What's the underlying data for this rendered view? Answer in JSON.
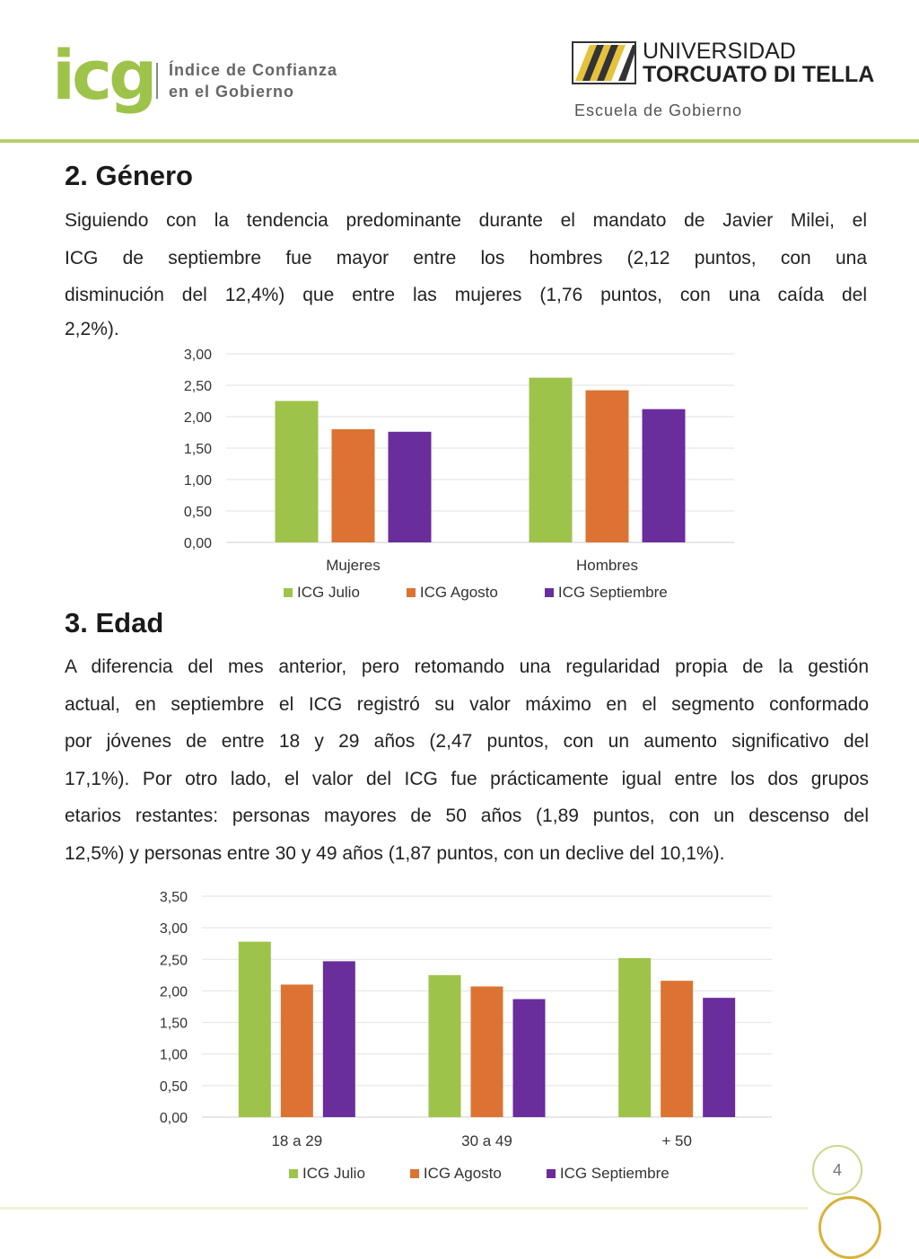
{
  "header": {
    "logo": "icg",
    "subtitle_line1": "Índice de Confianza",
    "subtitle_line2": "en el Gobierno",
    "university_line1": "UNIVERSIDAD",
    "university_line2": "TORCUATO DI TELLA",
    "school": "Escuela de Gobierno"
  },
  "colors": {
    "julio": "#9ec34a",
    "agosto": "#dd7332",
    "septiembre": "#6a2d9c",
    "accent": "#b7cf6a"
  },
  "section_genero": {
    "title": "2. Género",
    "lines": [
      "Siguiendo con la tendencia predominante durante el mandato de Javier Milei, el",
      "ICG de septiembre fue mayor entre los hombres (2,12 puntos, con una",
      "disminución del 12,4%) que entre las mujeres (1,76 puntos, con una caída del",
      "2,2%)."
    ]
  },
  "section_edad": {
    "title": "3. Edad",
    "lines": [
      "A diferencia del mes anterior, pero retomando una regularidad propia de la gestión",
      "actual, en septiembre el ICG registró su valor máximo en el segmento conformado",
      "por jóvenes de entre 18 y 29 años (2,47 puntos, con un aumento significativo del",
      "17,1%). Por otro lado, el valor del ICG fue prácticamente igual entre los dos grupos",
      "etarios restantes: personas mayores de 50 años (1,89 puntos, con un descenso del",
      "12,5%) y personas entre 30 y 49 años (1,87 puntos, con un declive del 10,1%)."
    ]
  },
  "chart_data": [
    {
      "type": "bar",
      "categories": [
        "Mujeres",
        "Hombres"
      ],
      "series": [
        {
          "name": "ICG Julio",
          "values": [
            2.25,
            2.62
          ]
        },
        {
          "name": "ICG Agosto",
          "values": [
            1.8,
            2.42
          ]
        },
        {
          "name": "ICG Septiembre",
          "values": [
            1.76,
            2.12
          ]
        }
      ],
      "yticks": [
        "0,00",
        "0,50",
        "1,00",
        "1,50",
        "2,00",
        "2,50",
        "3,00"
      ],
      "ylim": [
        0,
        3
      ],
      "grid": true,
      "legend": "bottom"
    },
    {
      "type": "bar",
      "categories": [
        "18 a 29",
        "30 a 49",
        "+ 50"
      ],
      "series": [
        {
          "name": "ICG Julio",
          "values": [
            2.78,
            2.25,
            2.52
          ]
        },
        {
          "name": "ICG Agosto",
          "values": [
            2.1,
            2.07,
            2.16
          ]
        },
        {
          "name": "ICG Septiembre",
          "values": [
            2.47,
            1.87,
            1.89
          ]
        }
      ],
      "yticks": [
        "0,00",
        "0,50",
        "1,00",
        "1,50",
        "2,00",
        "2,50",
        "3,00",
        "3,50"
      ],
      "ylim": [
        0,
        3.5
      ],
      "grid": true,
      "legend": "bottom"
    }
  ],
  "page_number": "4"
}
